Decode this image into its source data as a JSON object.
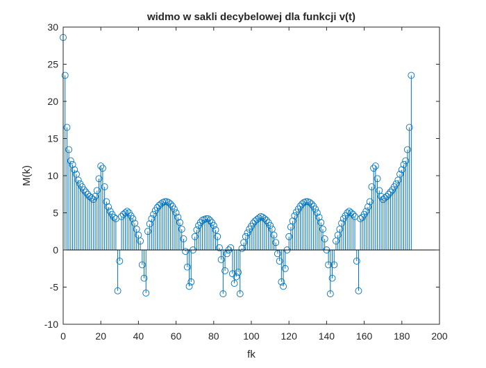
{
  "chart_data": {
    "type": "stem",
    "title": "widmo w sakli decybelowej dla funkcji v(t)",
    "xlabel": "fk",
    "ylabel": "M(k)",
    "xlim": [
      0,
      200
    ],
    "ylim": [
      -10,
      30
    ],
    "xticks": [
      0,
      20,
      40,
      60,
      80,
      100,
      120,
      140,
      160,
      180,
      200
    ],
    "yticks": [
      -10,
      -5,
      0,
      5,
      10,
      15,
      20,
      25,
      30
    ],
    "xtick_labels": [
      "0",
      "20",
      "40",
      "60",
      "80",
      "100",
      "120",
      "140",
      "160",
      "180",
      "200"
    ],
    "ytick_labels": [
      "-10",
      "-5",
      "0",
      "5",
      "10",
      "15",
      "20",
      "25",
      "30"
    ],
    "grid": false,
    "legend": "none",
    "series_color": "#0072BD",
    "x": [
      0,
      1,
      2,
      3,
      4,
      5,
      6,
      7,
      8,
      9,
      10,
      11,
      12,
      13,
      14,
      15,
      16,
      17,
      18,
      19,
      20,
      21,
      22,
      23,
      24,
      25,
      26,
      27,
      28,
      29,
      30,
      31,
      32,
      33,
      34,
      35,
      36,
      37,
      38,
      39,
      40,
      41,
      42,
      43,
      44,
      45,
      46,
      47,
      48,
      49,
      50,
      51,
      52,
      53,
      54,
      55,
      56,
      57,
      58,
      59,
      60,
      61,
      62,
      63,
      64,
      65,
      66,
      67,
      68,
      69,
      70,
      71,
      72,
      73,
      74,
      75,
      76,
      77,
      78,
      79,
      80,
      81,
      82,
      83,
      84,
      85,
      86,
      87,
      88,
      89,
      90,
      91,
      92,
      93,
      94,
      95,
      96,
      97,
      98,
      99,
      100,
      101,
      102,
      103,
      104,
      105,
      106,
      107,
      108,
      109,
      110,
      111,
      112,
      113,
      114,
      115,
      116,
      117,
      118,
      119,
      120,
      121,
      122,
      123,
      124,
      125,
      126,
      127,
      128,
      129,
      130,
      131,
      132,
      133,
      134,
      135,
      136,
      137,
      138,
      139,
      140,
      141,
      142,
      143,
      144,
      145,
      146,
      147,
      148,
      149,
      150,
      151,
      152,
      153,
      154,
      155,
      156,
      157,
      158,
      159,
      160,
      161,
      162,
      163,
      164,
      165,
      166,
      167,
      168,
      169,
      170,
      171,
      172,
      173,
      174,
      175,
      176,
      177,
      178,
      179,
      180,
      181,
      182,
      183,
      184,
      185
    ],
    "y": [
      28.6,
      23.5,
      16.5,
      13.5,
      12,
      11.5,
      10.8,
      10.2,
      9.4,
      8.9,
      8.5,
      8.1,
      7.8,
      7.5,
      7.2,
      7,
      6.8,
      7.2,
      8,
      9.6,
      11.3,
      11,
      8.5,
      6.5,
      5.8,
      5.2,
      4.8,
      4.4,
      4.2,
      -5.5,
      -1.5,
      4.5,
      4.8,
      5,
      5.2,
      5,
      4.6,
      4.2,
      3.6,
      2.8,
      2,
      1.2,
      -2,
      -3.8,
      -5.8,
      2.5,
      3.5,
      4.2,
      4.8,
      5.3,
      5.7,
      6,
      6.2,
      6.4,
      6.5,
      6.5,
      6.4,
      6.2,
      5.9,
      5.5,
      5,
      4.4,
      3.7,
      2.8,
      1.5,
      -0.2,
      -2.3,
      -4.9,
      -4.3,
      0,
      1.8,
      2.7,
      3.3,
      3.7,
      4,
      4.1,
      4.2,
      4.2,
      4,
      3.7,
      3.3,
      2.7,
      1.8,
      0.3,
      -1.3,
      -5.9,
      -2.8,
      -0.5,
      0,
      0.3,
      -3.2,
      -4.5,
      -3.6,
      -3,
      -5.9,
      0.2,
      1,
      1.8,
      2.3,
      2.8,
      3.2,
      3.6,
      3.9,
      4.1,
      4.3,
      4.5,
      4.4,
      4.2,
      4,
      3.7,
      3.3,
      2.8,
      2,
      1,
      -0.5,
      -1.5,
      -4.3,
      -4.9,
      -2.5,
      0,
      1.8,
      3.1,
      3.9,
      4.6,
      5.1,
      5.5,
      5.9,
      6.2,
      6.4,
      6.5,
      6.5,
      6.4,
      6.2,
      5.9,
      5.5,
      5,
      4.4,
      3.7,
      2.8,
      1.5,
      0,
      -2,
      -5.9,
      -3.8,
      -2,
      1.2,
      2,
      2.8,
      3.6,
      4.2,
      4.6,
      5,
      5.2,
      5,
      4.8,
      4.5,
      -1.5,
      -5.5,
      4.2,
      4.4,
      4.8,
      5.2,
      5.8,
      6.5,
      8.5,
      11,
      11.3,
      9.6,
      8,
      7.2,
      6.8,
      7,
      7.2,
      7.5,
      7.8,
      8.1,
      8.5,
      8.9,
      9.4,
      10.2,
      10.8,
      11.5,
      12,
      13.5,
      16.5,
      23.5
    ]
  }
}
